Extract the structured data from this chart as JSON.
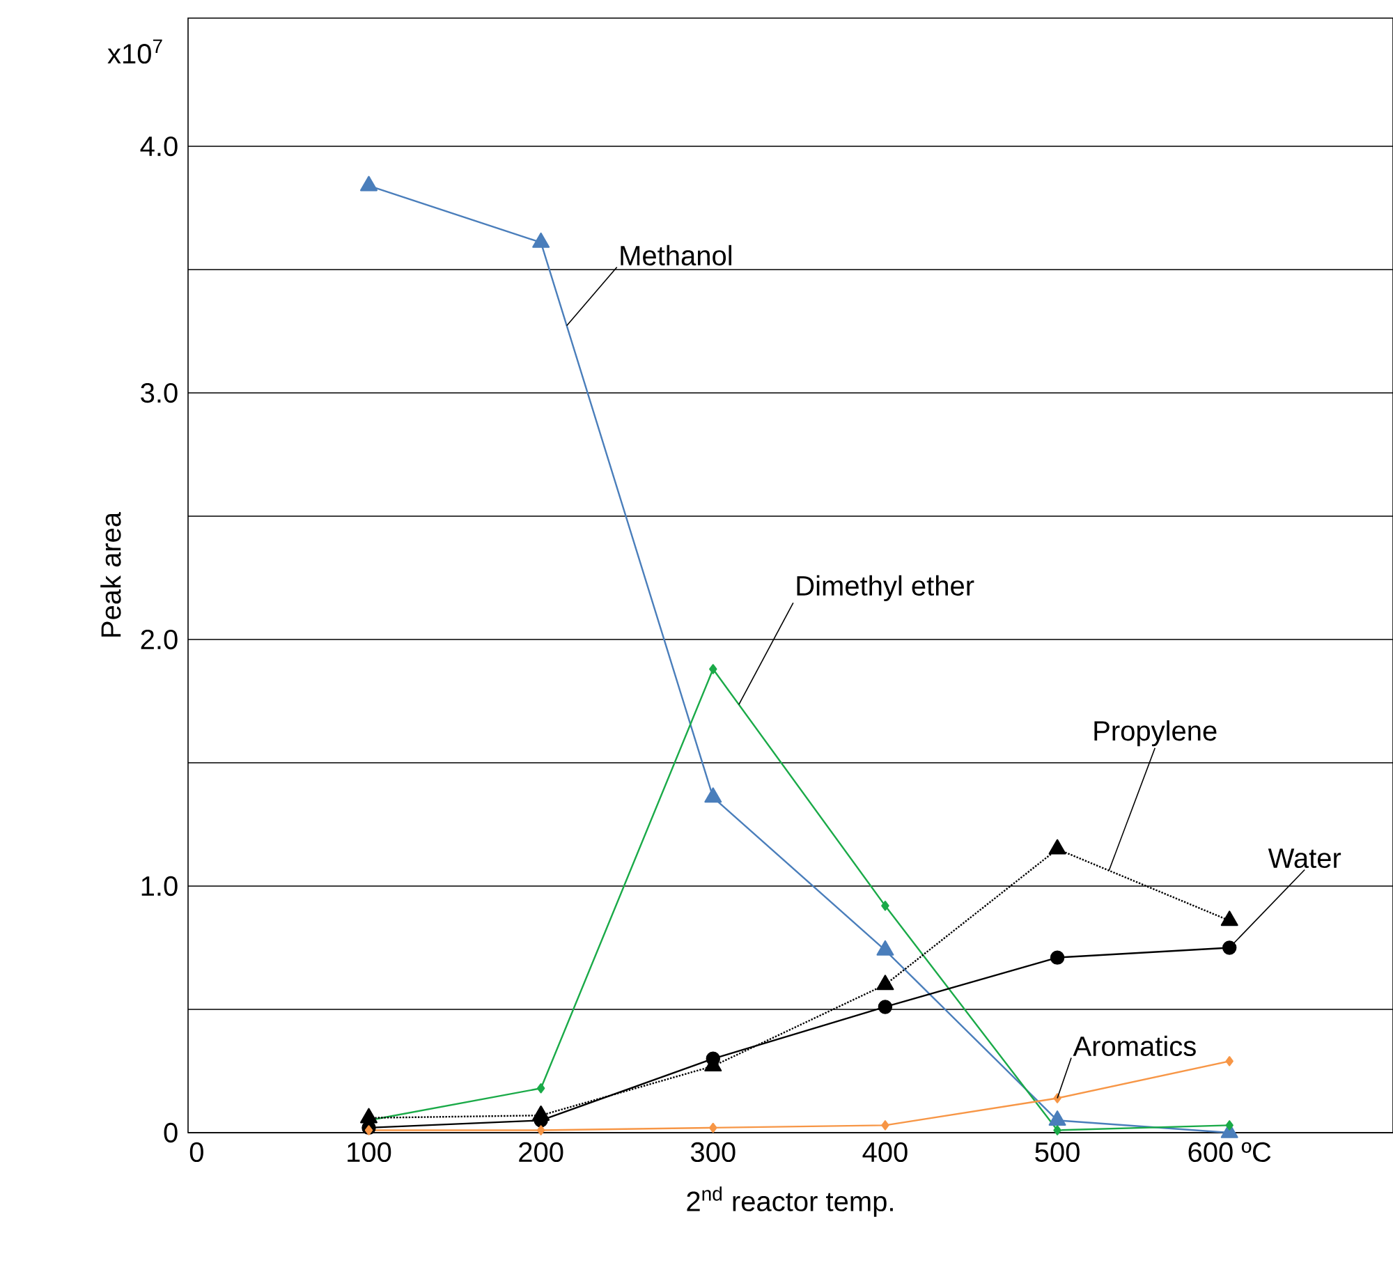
{
  "chart_data": {
    "type": "line",
    "xlabel": "2$^{nd}$ reactor temp.",
    "ylabel": "Peak area",
    "annotations": [
      "x10$^{7}$"
    ],
    "x": [
      100,
      200,
      300,
      400,
      500,
      600
    ],
    "series": [
      {
        "name": "Methanol",
        "color": "#4a7ebb",
        "marker": "triangle",
        "line_style": "solid",
        "values": [
          3.84,
          3.61,
          1.36,
          0.74,
          0.05,
          0.0
        ]
      },
      {
        "name": "Dimethyl ether",
        "color": "#1aaa48",
        "marker": "diamond",
        "line_style": "solid",
        "values": [
          0.05,
          0.18,
          1.88,
          0.92,
          0.01,
          0.03
        ]
      },
      {
        "name": "Propylene",
        "color": "#000000",
        "marker": "triangle",
        "line_style": "dotted",
        "values": [
          0.06,
          0.07,
          0.27,
          0.6,
          1.15,
          0.86
        ]
      },
      {
        "name": "Water",
        "color": "#000000",
        "marker": "circle",
        "line_style": "solid",
        "values": [
          0.02,
          0.05,
          0.3,
          0.51,
          0.71,
          0.75
        ]
      },
      {
        "name": "Aromatics",
        "color": "#f79646",
        "marker": "diamond",
        "line_style": "solid",
        "values": [
          0.01,
          0.01,
          0.02,
          0.03,
          0.14,
          0.29
        ]
      }
    ],
    "xlim": [
      -5,
      695
    ],
    "ylim": [
      0,
      4.52
    ],
    "xticks": [
      0,
      100,
      200,
      300,
      400,
      500,
      {
        "value": 600,
        "label": "600 ºC"
      }
    ],
    "yticks": [
      0,
      {
        "value": 0.5,
        "label": null
      },
      {
        "value": 1.0,
        "label": "1.0"
      },
      {
        "value": 1.5,
        "label": null
      },
      {
        "value": 2.0,
        "label": "2.0"
      },
      {
        "value": 2.5,
        "label": null
      },
      {
        "value": 3.0,
        "label": "3.0"
      },
      {
        "value": 3.5,
        "label": null
      },
      {
        "value": 4.0,
        "label": "4.0"
      }
    ],
    "grid": "y",
    "legend": false
  }
}
